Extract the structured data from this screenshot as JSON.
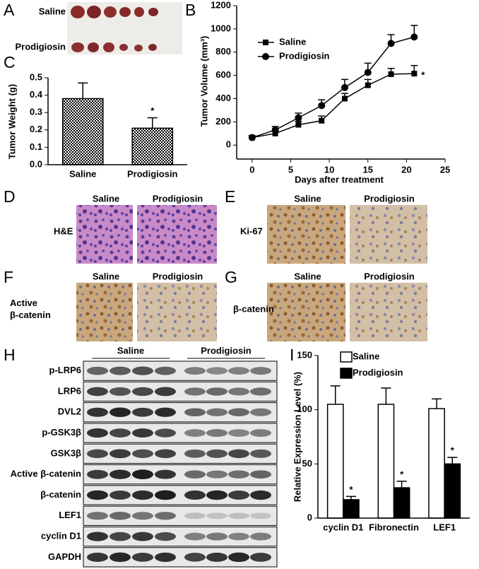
{
  "panel_letters": [
    "A",
    "B",
    "C",
    "D",
    "E",
    "F",
    "G",
    "H",
    "I"
  ],
  "panel_a": {
    "rows": [
      "Saline",
      "Prodigiosin"
    ]
  },
  "chart_data": [
    {
      "type": "line",
      "ylabel": "Tumor Volume (mm³)",
      "xlabel": "Days after treatment",
      "x": [
        0,
        3,
        6,
        9,
        12,
        15,
        18,
        21
      ],
      "series": [
        {
          "name": "Saline",
          "marker": "square",
          "color": "#000000",
          "values": [
            65,
            100,
            175,
            210,
            400,
            515,
            610,
            615
          ],
          "errors": [
            15,
            20,
            30,
            40,
            45,
            50,
            50,
            70
          ]
        },
        {
          "name": "Prodigiosin",
          "marker": "circle",
          "color": "#000000",
          "values": [
            65,
            130,
            235,
            340,
            495,
            625,
            875,
            930
          ],
          "errors": [
            15,
            30,
            40,
            50,
            70,
            80,
            75,
            100
          ]
        }
      ],
      "xlim": [
        -2,
        25
      ],
      "xticks": [
        0,
        5,
        10,
        15,
        20,
        25
      ],
      "ylim": [
        -120,
        1200
      ],
      "yticks": [
        0,
        200,
        400,
        600,
        800,
        1000,
        1200
      ],
      "annotations": [
        "*"
      ],
      "legend": "upper left"
    },
    {
      "type": "bar",
      "ylabel": "Tumor Weight (g)",
      "categories": [
        "Saline",
        "Prodigiosin"
      ],
      "values": [
        0.38,
        0.21
      ],
      "errors": [
        0.09,
        0.06
      ],
      "pattern": "checker",
      "color": "#000000",
      "ylim": [
        0,
        0.5
      ],
      "yticks": [
        {
          "value": 0,
          "label": "0.0"
        },
        0.1,
        0.2,
        0.3,
        0.4,
        0.5
      ],
      "annotations": [
        "*"
      ]
    },
    {
      "type": "bar",
      "ylabel": "Relative Expression Level (%)",
      "categories": [
        "cyclin D1",
        "Fibronectin",
        "LEF1"
      ],
      "series": [
        {
          "name": "Saline",
          "color": "#ffffff",
          "values": [
            105,
            105,
            101
          ],
          "errors": [
            17,
            15,
            9
          ]
        },
        {
          "name": "Prodigiosin",
          "color": "#000000",
          "values": [
            17,
            28,
            50
          ],
          "errors": [
            3,
            6,
            6
          ]
        }
      ],
      "ylim": [
        0,
        150
      ],
      "yticks": [
        0,
        50,
        100,
        150
      ],
      "annotations": [
        "*",
        "*",
        "*"
      ],
      "legend": "top"
    }
  ],
  "panel_d": {
    "columns": [
      "Saline",
      "Prodigiosin"
    ],
    "stain": [
      "H&E"
    ]
  },
  "panel_e": {
    "columns": [
      "Saline",
      "Prodigiosin"
    ],
    "stain": [
      "Ki-67"
    ]
  },
  "panel_f": {
    "columns": [
      "Saline",
      "Prodigiosin"
    ],
    "stain": [
      "Active",
      "β-catenin"
    ]
  },
  "panel_g": {
    "columns": [
      "Saline",
      "Prodigiosin"
    ],
    "stain": [
      "β-catenin"
    ]
  },
  "panel_h": {
    "groups": [
      "Saline",
      "Prodigiosin"
    ],
    "proteins": [
      "p-LRP6",
      "LRP6",
      "DVL2",
      "p-GSK3β",
      "GSK3β",
      "Active β-catenin",
      "β-catenin",
      "LEF1",
      "cyclin D1",
      "GAPDH"
    ]
  }
}
